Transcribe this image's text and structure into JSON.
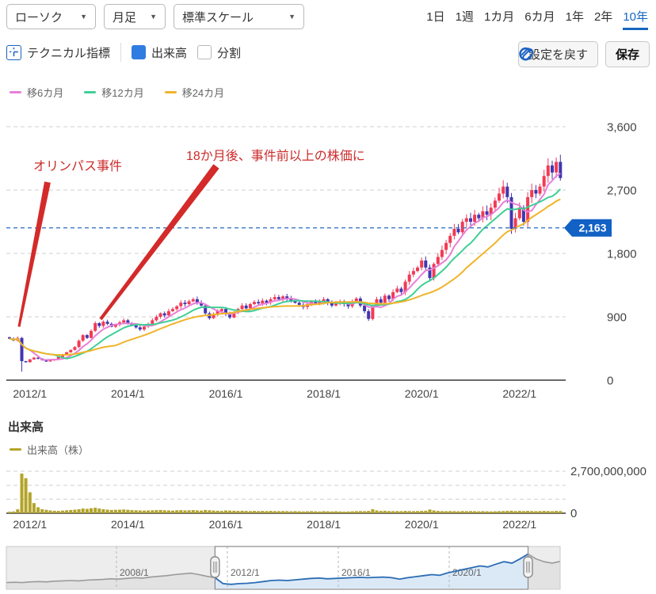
{
  "toolbar": {
    "chart_type": "ローソク",
    "period": "月足",
    "scale": "標準スケール",
    "technical_label": "テクニカル指標",
    "volume_label": "出来高",
    "split_label": "分割",
    "reset_label": "設定を戻す",
    "save_label": "保存"
  },
  "ranges": {
    "items": [
      "1日",
      "1週",
      "1カ月",
      "6カ月",
      "1年",
      "2年",
      "10年"
    ],
    "active": "10年"
  },
  "legend": {
    "ma6": "移6カ月",
    "ma12": "移12カ月",
    "ma24": "移24カ月"
  },
  "annotations": {
    "event": "オリンパス事件",
    "recovery": "18か月後、事件前以上の株価に"
  },
  "price_tag": "2,163",
  "volume_section": {
    "title": "出来高",
    "legend": "出来高（株）"
  },
  "colors": {
    "up": "#f23a55",
    "down": "#4136b0",
    "ma6": "#e87fd9",
    "ma12": "#3fcf95",
    "ma24": "#f0b429",
    "volume": "#b3a42a",
    "accent_blue": "#1a62c4",
    "price_tag_bg": "#1261c4",
    "annotation_red": "#d42a2a",
    "nav_line_blue": "#2b6cb3",
    "nav_fill_blue": "#dbe9f7",
    "nav_line_grey": "#9a9a9a",
    "nav_fill_grey": "#e2e2e2"
  },
  "chart_data": {
    "type": "candlestick",
    "title": "",
    "start_month": "2011/08",
    "interval": "monthly",
    "first_open": 610,
    "closes": [
      590,
      565,
      600,
      270,
      255,
      295,
      320,
      305,
      285,
      265,
      280,
      300,
      330,
      360,
      395,
      430,
      470,
      560,
      640,
      600,
      700,
      810,
      770,
      830,
      800,
      760,
      790,
      820,
      850,
      810,
      780,
      750,
      720,
      760,
      800,
      850,
      900,
      950,
      920,
      980,
      1010,
      1050,
      1100,
      1080,
      1120,
      1150,
      1100,
      1060,
      950,
      880,
      930,
      980,
      1010,
      940,
      890,
      960,
      1010,
      1060,
      1020,
      1080,
      1110,
      1090,
      1130,
      1100,
      1150,
      1180,
      1150,
      1190,
      1160,
      1130,
      1100,
      1070,
      1040,
      1080,
      1120,
      1090,
      1110,
      1150,
      1100,
      1060,
      1090,
      1120,
      1080,
      1050,
      1110,
      1160,
      1060,
      980,
      870,
      1050,
      1150,
      1100,
      1200,
      1150,
      1250,
      1300,
      1250,
      1400,
      1500,
      1550,
      1600,
      1700,
      1600,
      1450,
      1650,
      1750,
      1850,
      1950,
      2050,
      2150,
      2100,
      2250,
      2300,
      2250,
      2350,
      2300,
      2400,
      2350,
      2450,
      2550,
      2650,
      2750,
      2600,
      2150,
      2300,
      2450,
      2250,
      2600,
      2700,
      2650,
      2750,
      2900,
      3050,
      2950,
      3100,
      2870
    ],
    "volumes_millions": [
      90,
      110,
      250,
      2550,
      2250,
      1350,
      650,
      380,
      260,
      220,
      180,
      160,
      150,
      170,
      190,
      210,
      230,
      260,
      300,
      280,
      320,
      350,
      300,
      260,
      230,
      210,
      220,
      230,
      240,
      220,
      200,
      190,
      180,
      170,
      180,
      190,
      200,
      210,
      190,
      180,
      170,
      190,
      200,
      180,
      190,
      200,
      180,
      170,
      210,
      190,
      170,
      160,
      150,
      180,
      170,
      160,
      150,
      160,
      150,
      140,
      150,
      140,
      150,
      140,
      150,
      140,
      130,
      140,
      130,
      120,
      130,
      120,
      110,
      120,
      130,
      120,
      110,
      130,
      120,
      110,
      120,
      110,
      100,
      110,
      120,
      130,
      140,
      130,
      150,
      260,
      180,
      150,
      160,
      140,
      130,
      140,
      130,
      150,
      140,
      130,
      140,
      150,
      160,
      240,
      180,
      150,
      140,
      130,
      140,
      130,
      120,
      140,
      130,
      140,
      130,
      120,
      130,
      120,
      110,
      120,
      130,
      140,
      150,
      160,
      140,
      150,
      140,
      150,
      140,
      130,
      140,
      150,
      140,
      130,
      150,
      140
    ],
    "low_overrides": {
      "3": 120
    },
    "ma_windows": [
      6,
      12,
      24
    ],
    "current_price": 2163,
    "y_ticks": [
      {
        "label": "3,600",
        "value": 3600
      },
      {
        "label": "2,700",
        "value": 2700
      },
      {
        "label": "1,800",
        "value": 1800
      },
      {
        "label": "900",
        "value": 900
      },
      {
        "label": "0",
        "value": 0
      }
    ],
    "x_ticks": [
      {
        "label": "2012/1",
        "index": 5
      },
      {
        "label": "2014/1",
        "index": 29
      },
      {
        "label": "2016/1",
        "index": 53
      },
      {
        "label": "2018/1",
        "index": 77
      },
      {
        "label": "2020/1",
        "index": 101
      },
      {
        "label": "2022/1",
        "index": 125
      }
    ],
    "ylim": [
      0,
      3600
    ],
    "volume_axis": {
      "max": 2700000000,
      "ticks": [
        {
          "label": "2,700,000,000",
          "value": 2700000000
        },
        {
          "label": "0",
          "value": 0
        }
      ]
    }
  },
  "navigator": {
    "window_points": [
      26,
      65
    ],
    "values": [
      0.1,
      0.11,
      0.1,
      0.12,
      0.13,
      0.12,
      0.14,
      0.15,
      0.16,
      0.15,
      0.17,
      0.18,
      0.19,
      0.21,
      0.2,
      0.22,
      0.24,
      0.23,
      0.26,
      0.28,
      0.3,
      0.33,
      0.35,
      0.37,
      0.33,
      0.28,
      0.24,
      0.07,
      0.05,
      0.07,
      0.08,
      0.1,
      0.13,
      0.16,
      0.17,
      0.16,
      0.18,
      0.2,
      0.22,
      0.23,
      0.21,
      0.22,
      0.23,
      0.24,
      0.25,
      0.24,
      0.25,
      0.26,
      0.24,
      0.2,
      0.24,
      0.27,
      0.3,
      0.33,
      0.31,
      0.38,
      0.43,
      0.48,
      0.53,
      0.58,
      0.55,
      0.63,
      0.7,
      0.66,
      0.78,
      0.92,
      0.78,
      0.7,
      0.66,
      0.71
    ],
    "labels": [
      {
        "text": "2008/1",
        "x": 147
      },
      {
        "text": "2012/1",
        "x": 287
      },
      {
        "text": "2016/1",
        "x": 427
      },
      {
        "text": "2020/1",
        "x": 567
      }
    ]
  }
}
